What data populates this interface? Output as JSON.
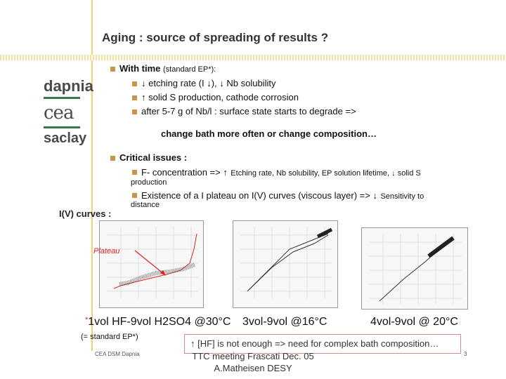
{
  "title": "Aging : source of spreading of results ?",
  "logos": {
    "dapnia": "dapnia",
    "cea": "cea",
    "saclay": "saclay"
  },
  "with_time": {
    "heading": "With time",
    "heading_note": "(standard EP*):",
    "items": [
      "↓ etching rate (I ↓), ↓ Nb solubility",
      "↑ solid S production, cathode corrosion",
      "after 5-7 g of Nb/l : surface state starts to degrade =>"
    ],
    "conclusion": "change bath more often or change composition…"
  },
  "critical": {
    "heading": "Critical issues :",
    "item1_main": "F- concentration => ↑",
    "item1_small": "Etching rate, Nb solubility, EP solution lifetime, ↓ solid S",
    "item1_cont": "production",
    "item2_main": "Existence of a I plateau on I(V) curves (viscous layer) => ↓",
    "item2_small": "Sensitivity to",
    "item2_cont": "distance"
  },
  "iv_heading": "I(V) curves :",
  "plateau_label": "Plateau",
  "captions": {
    "c1_star": "*",
    "c1": "1vol HF-9vol H2SO4 @30°C",
    "c1_note": "(= standard EP*)",
    "c2": "3vol-9vol @16°C",
    "c3": "4vol-9vol @ 20°C"
  },
  "bottom_note": "↑ [HF] is not enough => need for complex bath composition…",
  "footer_left": "CEA DSM Dapnia",
  "footer_center_1": "TTC meeting Frascati Dec. 05",
  "footer_center_2": "A.Matheisen DESY",
  "page_number": "3",
  "colors": {
    "accent_bullet": "#c9954a",
    "plateau_red": "#d22222",
    "box_border": "#d88888"
  }
}
